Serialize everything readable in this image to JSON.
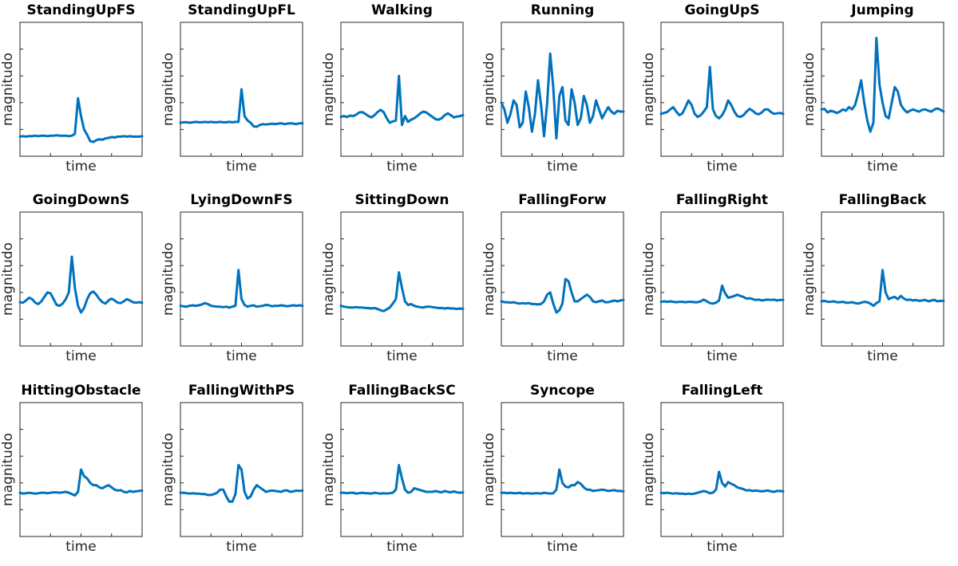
{
  "chart_data": [
    {
      "type": "line",
      "title": "StandingUpFS",
      "xlabel": "time",
      "ylabel": "magnitudo",
      "grid": false,
      "y": [
        0.44,
        0.45,
        0.44,
        0.45,
        0.45,
        0.46,
        0.45,
        0.46,
        0.46,
        0.45,
        0.46,
        0.46,
        0.47,
        0.46,
        0.46,
        0.46,
        0.45,
        0.46,
        0.5,
        1.3,
        0.9,
        0.6,
        0.48,
        0.34,
        0.32,
        0.36,
        0.38,
        0.37,
        0.4,
        0.41,
        0.43,
        0.42,
        0.44,
        0.44,
        0.45,
        0.44,
        0.45,
        0.44,
        0.44,
        0.44,
        0.45
      ]
    },
    {
      "type": "line",
      "title": "StandingUpFL",
      "xlabel": "time",
      "ylabel": "magnitudo",
      "grid": false,
      "y": [
        0.75,
        0.76,
        0.76,
        0.75,
        0.76,
        0.77,
        0.76,
        0.76,
        0.77,
        0.76,
        0.77,
        0.76,
        0.76,
        0.77,
        0.76,
        0.76,
        0.77,
        0.76,
        0.77,
        0.77,
        1.5,
        0.9,
        0.8,
        0.75,
        0.67,
        0.66,
        0.7,
        0.72,
        0.71,
        0.72,
        0.73,
        0.72,
        0.73,
        0.74,
        0.72,
        0.73,
        0.74,
        0.73,
        0.72,
        0.74,
        0.74
      ]
    },
    {
      "type": "line",
      "title": "Walking",
      "xlabel": "time",
      "ylabel": "magnitudo",
      "grid": false,
      "y": [
        0.88,
        0.9,
        0.88,
        0.91,
        0.9,
        0.93,
        0.98,
        0.99,
        0.95,
        0.9,
        0.87,
        0.92,
        0.99,
        1.04,
        0.99,
        0.85,
        0.75,
        0.78,
        0.8,
        1.8,
        0.7,
        0.9,
        0.77,
        0.82,
        0.85,
        0.9,
        0.96,
        1,
        0.98,
        0.93,
        0.88,
        0.83,
        0.82,
        0.85,
        0.92,
        0.96,
        0.92,
        0.87,
        0.89,
        0.9,
        0.92
      ]
    },
    {
      "type": "line",
      "title": "Running",
      "xlabel": "time",
      "ylabel": "magnitudo",
      "grid": false,
      "y": [
        1.2,
        1.05,
        0.75,
        0.95,
        1.25,
        1.15,
        0.65,
        0.75,
        1.45,
        1.1,
        0.55,
        0.95,
        1.7,
        1.15,
        0.45,
        1.2,
        2.3,
        1.55,
        0.4,
        1.35,
        1.55,
        0.8,
        0.7,
        1.5,
        1.2,
        0.7,
        0.85,
        1.35,
        1.15,
        0.75,
        0.9,
        1.25,
        1.05,
        0.85,
        0.98,
        1.1,
        1.0,
        0.95,
        1.02,
        1.0,
        1.0
      ]
    },
    {
      "type": "line",
      "title": "GoingUpS",
      "xlabel": "time",
      "ylabel": "magnitudo",
      "grid": false,
      "y": [
        0.95,
        0.97,
        0.99,
        1.05,
        1.1,
        1.0,
        0.92,
        0.96,
        1.1,
        1.25,
        1.15,
        0.95,
        0.88,
        0.92,
        1.0,
        1.1,
        2.0,
        1.05,
        0.9,
        0.85,
        0.92,
        1.05,
        1.25,
        1.15,
        1.0,
        0.9,
        0.88,
        0.92,
        1.0,
        1.06,
        1.02,
        0.96,
        0.94,
        0.98,
        1.05,
        1.05,
        0.99,
        0.95,
        0.96,
        0.97,
        0.95
      ]
    },
    {
      "type": "line",
      "title": "Jumping",
      "xlabel": "time",
      "ylabel": "magnitudo",
      "grid": false,
      "y": [
        1.05,
        1.06,
        0.98,
        1.02,
        1.0,
        0.97,
        1.0,
        1.05,
        1.02,
        1.1,
        1.05,
        1.15,
        1.4,
        1.7,
        1.2,
        0.8,
        0.55,
        0.75,
        2.65,
        1.6,
        1.2,
        0.9,
        0.85,
        1.2,
        1.55,
        1.45,
        1.15,
        1.05,
        0.98,
        1.02,
        1.05,
        1.02,
        1.0,
        1.04,
        1.05,
        1.02,
        1.0,
        1.05,
        1.07,
        1.04,
        1.0
      ]
    },
    {
      "type": "line",
      "title": "GoingDownS",
      "xlabel": "time",
      "ylabel": "magnitudo",
      "grid": false,
      "y": [
        0.98,
        0.97,
        1.02,
        1.08,
        1.05,
        0.97,
        0.94,
        1.0,
        1.1,
        1.2,
        1.18,
        1.05,
        0.92,
        0.9,
        0.95,
        1.05,
        1.2,
        2.0,
        1.3,
        0.9,
        0.75,
        0.85,
        1.05,
        1.18,
        1.22,
        1.15,
        1.05,
        0.98,
        0.95,
        1.02,
        1.06,
        1.02,
        0.97,
        0.96,
        1.0,
        1.05,
        1.02,
        0.98,
        0.97,
        0.98,
        0.97
      ]
    },
    {
      "type": "line",
      "title": "LyingDownFS",
      "xlabel": "time",
      "ylabel": "magnitudo",
      "grid": false,
      "y": [
        0.9,
        0.89,
        0.88,
        0.9,
        0.91,
        0.9,
        0.91,
        0.93,
        0.96,
        0.94,
        0.9,
        0.89,
        0.88,
        0.88,
        0.87,
        0.88,
        0.86,
        0.88,
        0.9,
        1.7,
        1.05,
        0.92,
        0.88,
        0.9,
        0.91,
        0.88,
        0.89,
        0.9,
        0.92,
        0.91,
        0.89,
        0.9,
        0.9,
        0.91,
        0.9,
        0.89,
        0.9,
        0.91,
        0.9,
        0.91,
        0.9
      ]
    },
    {
      "type": "line",
      "title": "SittingDown",
      "xlabel": "time",
      "ylabel": "magnitudo",
      "grid": false,
      "y": [
        0.9,
        0.88,
        0.87,
        0.86,
        0.86,
        0.87,
        0.86,
        0.86,
        0.85,
        0.85,
        0.84,
        0.85,
        0.83,
        0.8,
        0.78,
        0.82,
        0.86,
        0.95,
        1.05,
        1.65,
        1.3,
        1.0,
        0.92,
        0.94,
        0.9,
        0.88,
        0.87,
        0.86,
        0.88,
        0.88,
        0.87,
        0.86,
        0.85,
        0.85,
        0.84,
        0.85,
        0.84,
        0.84,
        0.83,
        0.84,
        0.83
      ]
    },
    {
      "type": "line",
      "title": "FallingForw",
      "xlabel": "time",
      "ylabel": "magnitudo",
      "grid": false,
      "y": [
        1.0,
        0.98,
        0.98,
        0.97,
        0.98,
        0.96,
        0.95,
        0.96,
        0.95,
        0.96,
        0.94,
        0.94,
        0.93,
        0.94,
        1.0,
        1.15,
        1.2,
        0.95,
        0.75,
        0.8,
        0.95,
        1.5,
        1.45,
        1.2,
        1.0,
        1.0,
        1.05,
        1.1,
        1.15,
        1.1,
        1.0,
        0.98,
        1.0,
        1.02,
        0.98,
        0.98,
        1.0,
        1.02,
        1.0,
        1.02,
        1.03
      ]
    },
    {
      "type": "line",
      "title": "FallingRight",
      "xlabel": "time",
      "ylabel": "magnitudo",
      "grid": false,
      "y": [
        0.99,
        1.0,
        0.99,
        1.0,
        0.99,
        0.98,
        0.99,
        0.99,
        0.98,
        0.99,
        0.99,
        0.98,
        0.98,
        1.0,
        1.04,
        1.0,
        0.96,
        0.95,
        0.97,
        1.02,
        1.35,
        1.18,
        1.08,
        1.1,
        1.12,
        1.15,
        1.12,
        1.1,
        1.06,
        1.07,
        1.05,
        1.03,
        1.04,
        1.02,
        1.03,
        1.04,
        1.03,
        1.04,
        1.02,
        1.03,
        1.03
      ]
    },
    {
      "type": "line",
      "title": "FallingBack",
      "xlabel": "time",
      "ylabel": "magnitudo",
      "grid": false,
      "y": [
        1.0,
        1.01,
        0.99,
        0.99,
        1.0,
        0.98,
        0.98,
        0.99,
        0.97,
        0.97,
        0.98,
        0.96,
        0.95,
        0.97,
        0.99,
        0.98,
        0.95,
        0.9,
        0.96,
        1.0,
        1.7,
        1.2,
        1.05,
        1.08,
        1.1,
        1.05,
        1.12,
        1.06,
        1.03,
        1.04,
        1.02,
        1.03,
        1.01,
        1.02,
        1.03,
        1.0,
        1.02,
        1.03,
        1.0,
        1.01,
        1.01
      ]
    },
    {
      "type": "line",
      "title": "HittingObstacle",
      "xlabel": "time",
      "ylabel": "magnitudo",
      "grid": false,
      "y": [
        0.98,
        0.96,
        0.97,
        0.98,
        0.97,
        0.96,
        0.97,
        0.98,
        0.98,
        0.97,
        0.98,
        0.99,
        0.99,
        0.98,
        0.99,
        1.0,
        0.98,
        0.95,
        0.92,
        1.0,
        1.5,
        1.35,
        1.3,
        1.2,
        1.15,
        1.15,
        1.1,
        1.08,
        1.12,
        1.15,
        1.1,
        1.05,
        1.03,
        1.04,
        1.0,
        0.99,
        1.02,
        1.0,
        1.01,
        1.02,
        1.03
      ]
    },
    {
      "type": "line",
      "title": "FallingWithPS",
      "xlabel": "time",
      "ylabel": "magnitudo",
      "grid": false,
      "y": [
        0.98,
        0.98,
        0.97,
        0.96,
        0.97,
        0.96,
        0.96,
        0.95,
        0.95,
        0.93,
        0.93,
        0.95,
        0.98,
        1.05,
        1.05,
        0.9,
        0.78,
        0.78,
        0.95,
        1.6,
        1.5,
        1.0,
        0.85,
        0.9,
        1.05,
        1.15,
        1.1,
        1.05,
        1.0,
        1.02,
        1.03,
        1.02,
        1.01,
        1.0,
        1.03,
        1.03,
        1.0,
        1.01,
        1.03,
        1.02,
        1.03
      ]
    },
    {
      "type": "line",
      "title": "FallingBackSC",
      "xlabel": "time",
      "ylabel": "magnitudo",
      "grid": false,
      "y": [
        0.98,
        0.98,
        0.97,
        0.98,
        0.98,
        0.96,
        0.97,
        0.98,
        0.97,
        0.97,
        0.96,
        0.98,
        0.97,
        0.96,
        0.97,
        0.96,
        0.97,
        0.98,
        1.05,
        1.6,
        1.3,
        1.05,
        0.98,
        1.0,
        1.08,
        1.06,
        1.04,
        1.02,
        1.0,
        1.0,
        1.0,
        1.02,
        1.0,
        0.99,
        1.02,
        1.0,
        0.99,
        1.01,
        0.99,
        0.98,
        0.99
      ]
    },
    {
      "type": "line",
      "title": "Syncope",
      "xlabel": "time",
      "ylabel": "magnitudo",
      "grid": false,
      "y": [
        0.98,
        0.98,
        0.97,
        0.98,
        0.97,
        0.97,
        0.98,
        0.96,
        0.97,
        0.97,
        0.96,
        0.97,
        0.97,
        0.96,
        0.98,
        0.97,
        0.96,
        0.97,
        1.05,
        1.5,
        1.2,
        1.12,
        1.1,
        1.15,
        1.15,
        1.22,
        1.18,
        1.1,
        1.05,
        1.05,
        1.02,
        1.03,
        1.04,
        1.05,
        1.04,
        1.02,
        1.03,
        1.04,
        1.02,
        1.02,
        1.01
      ]
    },
    {
      "type": "line",
      "title": "FallingLeft",
      "xlabel": "time",
      "ylabel": "magnitudo",
      "grid": false,
      "y": [
        0.98,
        0.97,
        0.98,
        0.97,
        0.96,
        0.97,
        0.96,
        0.96,
        0.95,
        0.96,
        0.95,
        0.96,
        0.98,
        1.0,
        1.02,
        1.0,
        0.97,
        0.98,
        1.05,
        1.45,
        1.2,
        1.12,
        1.22,
        1.18,
        1.15,
        1.1,
        1.08,
        1.06,
        1.03,
        1.04,
        1.02,
        1.03,
        1.02,
        1.01,
        1.02,
        1.03,
        1.01,
        1.0,
        1.02,
        1.02,
        1.01
      ]
    }
  ]
}
